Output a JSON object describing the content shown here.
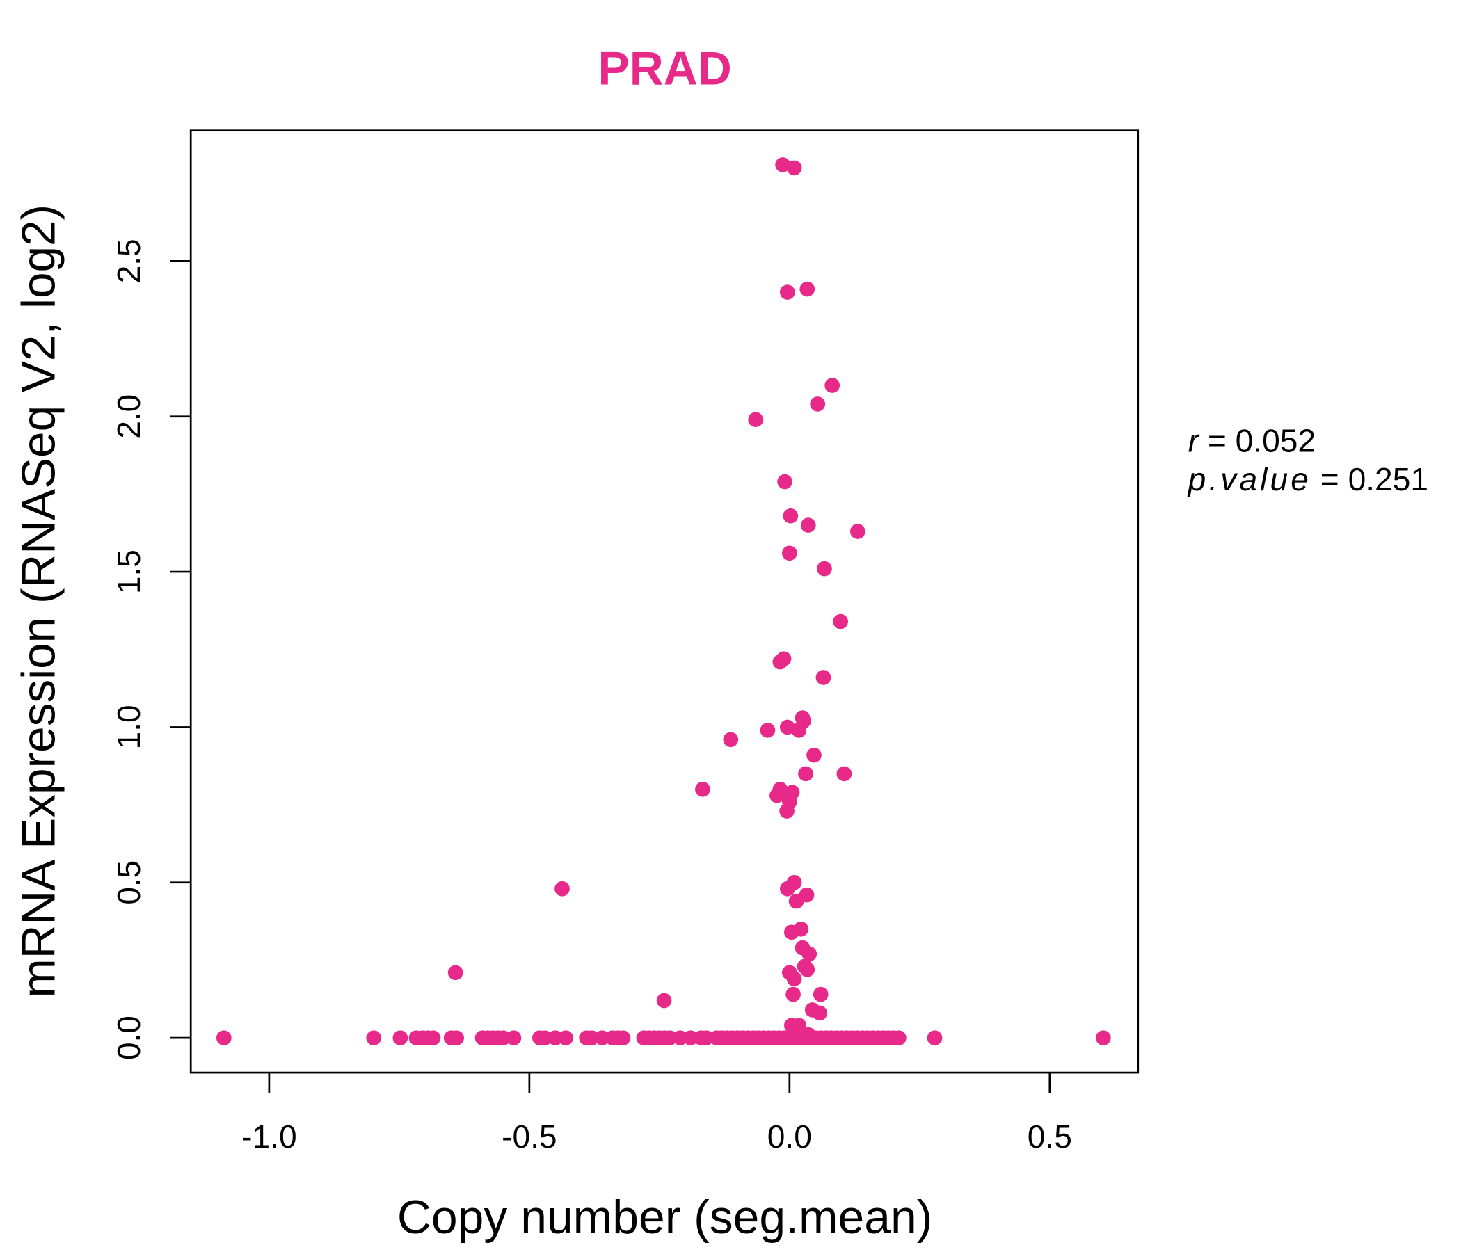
{
  "chart_data": {
    "type": "scatter",
    "title": "PRAD",
    "xlabel": "Copy number (seg.mean)",
    "ylabel": "mRNA Expression (RNASeq V2, log2)",
    "xlim": [
      -1.15,
      0.67
    ],
    "ylim": [
      -0.11,
      2.93
    ],
    "xticks": [
      -1.0,
      -0.5,
      0.0,
      0.5
    ],
    "xtick_labels": [
      "-1.0",
      "-0.5",
      "0.0",
      "0.5"
    ],
    "yticks": [
      0.0,
      0.5,
      1.0,
      1.5,
      2.0,
      2.5
    ],
    "ytick_labels": [
      "0.0",
      "0.5",
      "1.0",
      "1.5",
      "2.0",
      "2.5"
    ],
    "grid": false,
    "color": "#E7298A",
    "annotation": {
      "r_label": "r",
      "r_value": "= 0.052",
      "p_label": "p.value",
      "p_value": "= 0.251"
    },
    "points": [
      [
        -0.013,
        2.81
      ],
      [
        0.009,
        2.8
      ],
      [
        -0.004,
        2.4
      ],
      [
        0.034,
        2.41
      ],
      [
        0.082,
        2.1
      ],
      [
        0.054,
        2.04
      ],
      [
        -0.065,
        1.99
      ],
      [
        -0.009,
        1.79
      ],
      [
        0.002,
        1.68
      ],
      [
        0.036,
        1.65
      ],
      [
        0.131,
        1.63
      ],
      [
        0.0,
        1.56
      ],
      [
        0.067,
        1.51
      ],
      [
        0.098,
        1.34
      ],
      [
        -0.011,
        1.22
      ],
      [
        -0.018,
        1.21
      ],
      [
        0.065,
        1.16
      ],
      [
        -0.113,
        0.96
      ],
      [
        -0.042,
        0.99
      ],
      [
        -0.004,
        1.0
      ],
      [
        0.018,
        0.99
      ],
      [
        0.025,
        1.03
      ],
      [
        0.027,
        1.02
      ],
      [
        0.047,
        0.91
      ],
      [
        0.031,
        0.85
      ],
      [
        0.105,
        0.85
      ],
      [
        -0.167,
        0.8
      ],
      [
        -0.018,
        0.8
      ],
      [
        0.005,
        0.79
      ],
      [
        -0.024,
        0.78
      ],
      [
        0.0,
        0.76
      ],
      [
        -0.005,
        0.73
      ],
      [
        -0.437,
        0.48
      ],
      [
        -0.004,
        0.48
      ],
      [
        0.009,
        0.5
      ],
      [
        0.033,
        0.46
      ],
      [
        0.013,
        0.44
      ],
      [
        0.004,
        0.34
      ],
      [
        0.022,
        0.35
      ],
      [
        0.025,
        0.29
      ],
      [
        0.038,
        0.27
      ],
      [
        0.029,
        0.23
      ],
      [
        0.034,
        0.22
      ],
      [
        0.0,
        0.21
      ],
      [
        0.009,
        0.19
      ],
      [
        -0.642,
        0.21
      ],
      [
        0.007,
        0.14
      ],
      [
        0.06,
        0.14
      ],
      [
        -0.241,
        0.12
      ],
      [
        0.044,
        0.09
      ],
      [
        0.058,
        0.08
      ],
      [
        0.018,
        0.04
      ],
      [
        0.004,
        0.04
      ],
      [
        0.036,
        0.01
      ],
      [
        -1.087,
        0
      ],
      [
        -0.799,
        0
      ],
      [
        -0.748,
        0
      ],
      [
        -0.717,
        0
      ],
      [
        -0.705,
        0
      ],
      [
        -0.695,
        0
      ],
      [
        -0.685,
        0
      ],
      [
        -0.65,
        0
      ],
      [
        -0.64,
        0
      ],
      [
        -0.59,
        0
      ],
      [
        -0.58,
        0
      ],
      [
        -0.57,
        0
      ],
      [
        -0.56,
        0
      ],
      [
        -0.55,
        0
      ],
      [
        -0.53,
        0
      ],
      [
        -0.48,
        0
      ],
      [
        -0.47,
        0
      ],
      [
        -0.45,
        0
      ],
      [
        -0.43,
        0
      ],
      [
        -0.39,
        0
      ],
      [
        -0.38,
        0
      ],
      [
        -0.36,
        0
      ],
      [
        -0.34,
        0
      ],
      [
        -0.33,
        0
      ],
      [
        -0.32,
        0
      ],
      [
        -0.28,
        0
      ],
      [
        -0.27,
        0
      ],
      [
        -0.26,
        0
      ],
      [
        -0.25,
        0
      ],
      [
        -0.24,
        0
      ],
      [
        -0.23,
        0
      ],
      [
        -0.21,
        0
      ],
      [
        -0.19,
        0
      ],
      [
        -0.17,
        0
      ],
      [
        -0.16,
        0
      ],
      [
        -0.14,
        0
      ],
      [
        -0.13,
        0
      ],
      [
        -0.12,
        0
      ],
      [
        -0.11,
        0
      ],
      [
        -0.1,
        0
      ],
      [
        -0.09,
        0
      ],
      [
        -0.08,
        0
      ],
      [
        -0.07,
        0
      ],
      [
        -0.06,
        0
      ],
      [
        -0.05,
        0
      ],
      [
        -0.04,
        0
      ],
      [
        -0.03,
        0
      ],
      [
        -0.02,
        0
      ],
      [
        -0.01,
        0
      ],
      [
        0.0,
        0
      ],
      [
        0.01,
        0
      ],
      [
        0.02,
        0
      ],
      [
        0.03,
        0
      ],
      [
        0.04,
        0
      ],
      [
        0.05,
        0
      ],
      [
        0.06,
        0
      ],
      [
        0.07,
        0
      ],
      [
        0.08,
        0
      ],
      [
        0.09,
        0
      ],
      [
        0.1,
        0
      ],
      [
        0.11,
        0
      ],
      [
        0.12,
        0
      ],
      [
        0.13,
        0
      ],
      [
        0.14,
        0
      ],
      [
        0.15,
        0
      ],
      [
        0.16,
        0
      ],
      [
        0.17,
        0
      ],
      [
        0.18,
        0
      ],
      [
        0.19,
        0
      ],
      [
        0.2,
        0
      ],
      [
        0.21,
        0
      ],
      [
        0.279,
        0
      ],
      [
        0.603,
        0
      ]
    ]
  }
}
